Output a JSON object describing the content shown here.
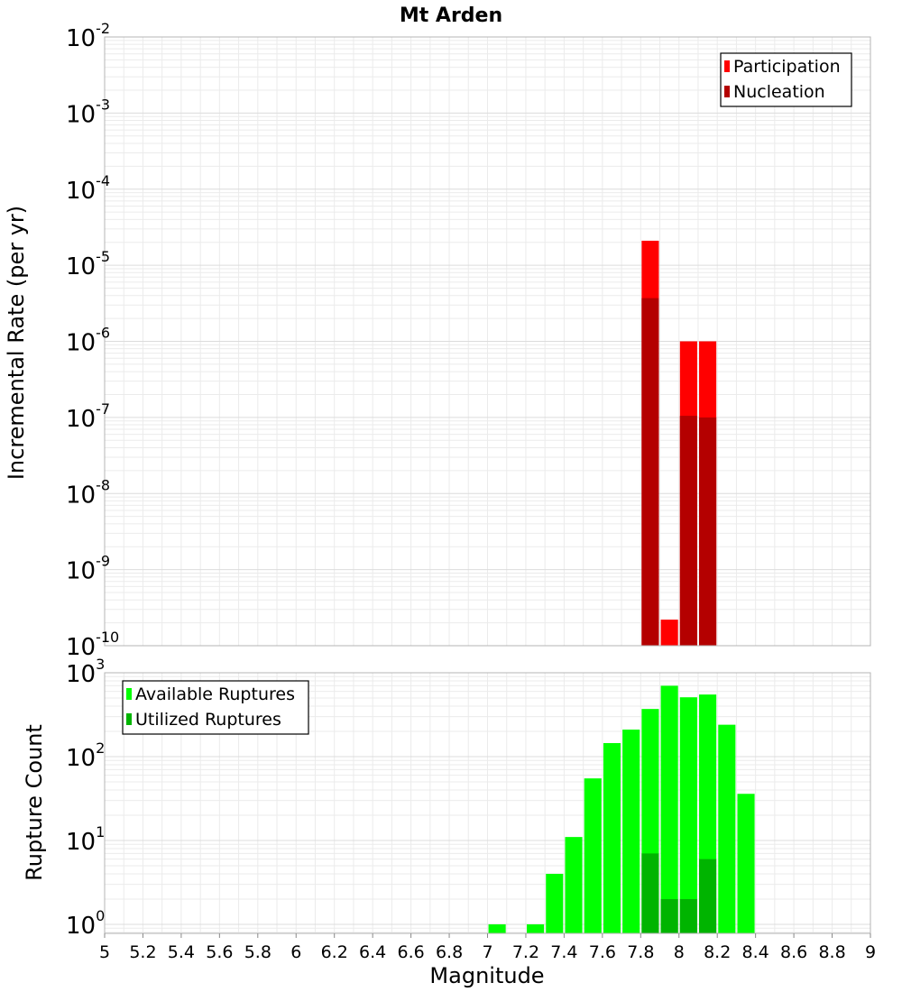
{
  "chart_data": [
    {
      "type": "bar",
      "title": "Mt Arden",
      "xlabel": "",
      "ylabel": "Incremental Rate (per yr)",
      "yscale": "log",
      "ylim": [
        1e-10,
        0.01
      ],
      "xlim": [
        5,
        9
      ],
      "y_tick_labels": [
        {
          "base": "10",
          "exp": "-10"
        },
        {
          "base": "10",
          "exp": "-9"
        },
        {
          "base": "10",
          "exp": "-8"
        },
        {
          "base": "10",
          "exp": "-7"
        },
        {
          "base": "10",
          "exp": "-6"
        },
        {
          "base": "10",
          "exp": "-5"
        },
        {
          "base": "10",
          "exp": "-4"
        },
        {
          "base": "10",
          "exp": "-3"
        },
        {
          "base": "10",
          "exp": "-2"
        }
      ],
      "legend_position": "top-right",
      "bar_width": 0.09,
      "series": [
        {
          "name": "Participation",
          "color": "#ff0000",
          "points": [
            {
              "x": 7.85,
              "y": 2.1e-05
            },
            {
              "x": 7.95,
              "y": 2.2e-10
            },
            {
              "x": 8.05,
              "y": 1e-06
            },
            {
              "x": 8.15,
              "y": 1e-06
            }
          ]
        },
        {
          "name": "Nucleation",
          "color": "#b40000",
          "points": [
            {
              "x": 7.85,
              "y": 3.7e-06
            },
            {
              "x": 8.05,
              "y": 1.05e-07
            },
            {
              "x": 8.15,
              "y": 1e-07
            }
          ]
        }
      ]
    },
    {
      "type": "bar",
      "title": "",
      "xlabel": "Magnitude",
      "ylabel": "Rupture Count",
      "yscale": "log",
      "ylim": [
        0.78,
        1000
      ],
      "xlim": [
        5,
        9
      ],
      "x_tick_labels": [
        "5",
        "5.2",
        "5.4",
        "5.6",
        "5.8",
        "6",
        "6.2",
        "6.4",
        "6.6",
        "6.8",
        "7",
        "7.2",
        "7.4",
        "7.6",
        "7.8",
        "8",
        "8.2",
        "8.4",
        "8.6",
        "8.8",
        "9"
      ],
      "y_tick_labels": [
        {
          "base": "10",
          "exp": "0"
        },
        {
          "base": "10",
          "exp": "1"
        },
        {
          "base": "10",
          "exp": "2"
        },
        {
          "base": "10",
          "exp": "3"
        }
      ],
      "legend_position": "top-left",
      "bar_width": 0.09,
      "series": [
        {
          "name": "Available Ruptures",
          "color": "#00ff00",
          "points": [
            {
              "x": 7.05,
              "y": 1
            },
            {
              "x": 7.25,
              "y": 1
            },
            {
              "x": 7.35,
              "y": 4
            },
            {
              "x": 7.45,
              "y": 11
            },
            {
              "x": 7.55,
              "y": 55
            },
            {
              "x": 7.65,
              "y": 145
            },
            {
              "x": 7.75,
              "y": 210
            },
            {
              "x": 7.85,
              "y": 370
            },
            {
              "x": 7.95,
              "y": 700
            },
            {
              "x": 8.05,
              "y": 510
            },
            {
              "x": 8.15,
              "y": 550
            },
            {
              "x": 8.25,
              "y": 240
            },
            {
              "x": 8.35,
              "y": 36
            }
          ]
        },
        {
          "name": "Utilized Ruptures",
          "color": "#00b400",
          "points": [
            {
              "x": 7.85,
              "y": 7
            },
            {
              "x": 7.95,
              "y": 2
            },
            {
              "x": 8.05,
              "y": 2
            },
            {
              "x": 8.15,
              "y": 6
            }
          ]
        }
      ]
    }
  ]
}
